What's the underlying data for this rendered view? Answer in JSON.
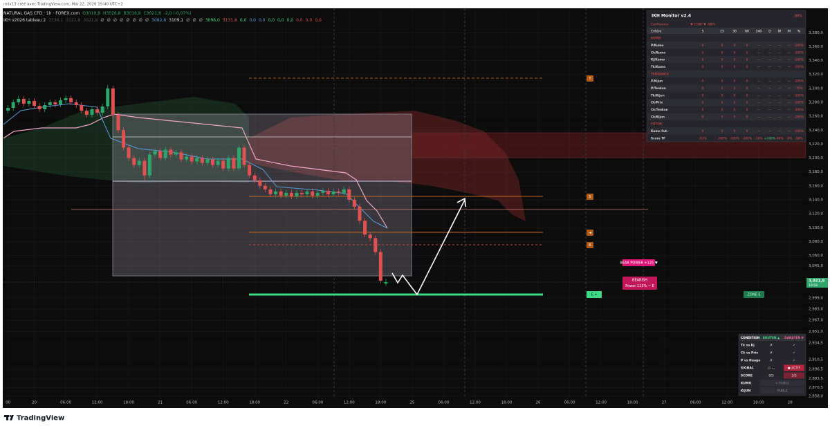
{
  "header": {
    "credit": "mlix13 créé avec TradingView.com, Mai 22, 2026 19:40 UTC+2",
    "symbol": "NATURAL GAS CFD · 1h · FOREX.com",
    "ohlc": [
      "O3019,8",
      "H3026,8",
      "B3016,8",
      "C3021,8",
      "-2,0 (-0,07%)"
    ],
    "indicator": "IKH v2026 tableau 2",
    "indicator_values": [
      "3136,1",
      "3121,8",
      "3021,8",
      "∅",
      "∅",
      "∅",
      "∅",
      "∅",
      "∅",
      "∅",
      "∅",
      "3082,8",
      "3109,1",
      "∅",
      "∅",
      "∅",
      "3096,0",
      "3131,8",
      "0,0",
      "0,0",
      "0,0",
      "0,0",
      "0,0",
      "0,0",
      "0,0",
      "0,0",
      "0,0"
    ],
    "indicator_colors": [
      "#555",
      "#555",
      "#555",
      "#ddd",
      "#ddd",
      "#ddd",
      "#ddd",
      "#ddd",
      "#ddd",
      "#ddd",
      "#ddd",
      "#5b9bd5",
      "#ddd",
      "#ddd",
      "#ddd",
      "#ddd",
      "#3ddc84",
      "#e05252",
      "#3ddc84",
      "#5b9bd5",
      "#5b9bd5",
      "#3ddc84",
      "#3ddc84",
      "#3ddc84",
      "#e05252",
      "#e05252",
      "#e05252"
    ]
  },
  "chart_data": {
    "type": "candlestick",
    "up_color": "#2ea66b",
    "down_color": "#e05252",
    "grid": true,
    "x": [
      0,
      1,
      2,
      3,
      4,
      5,
      6,
      7,
      8,
      9,
      10,
      11,
      12,
      13,
      14,
      15,
      16,
      17,
      18,
      19,
      20,
      21,
      22,
      23,
      24,
      25,
      26,
      27,
      28,
      29,
      30,
      31,
      32,
      33,
      34,
      35,
      36,
      37,
      38,
      39,
      40,
      41,
      42,
      43,
      44,
      45,
      46,
      47,
      48,
      49,
      50,
      51,
      52,
      53,
      54,
      55,
      56,
      57,
      58,
      59,
      60,
      61,
      62,
      63,
      64,
      65,
      66,
      67,
      68,
      69,
      70,
      71,
      72
    ],
    "open": [
      3268,
      3272,
      3280,
      3285,
      3278,
      3282,
      3275,
      3270,
      3276,
      3280,
      3277,
      3283,
      3286,
      3280,
      3276,
      3268,
      3262,
      3270,
      3265,
      3274,
      3300,
      3262,
      3240,
      3215,
      3200,
      3190,
      3196,
      3175,
      3205,
      3210,
      3200,
      3212,
      3205,
      3208,
      3198,
      3202,
      3195,
      3200,
      3193,
      3198,
      3190,
      3196,
      3185,
      3200,
      3185,
      3215,
      3190,
      3175,
      3168,
      3160,
      3155,
      3148,
      3152,
      3146,
      3150,
      3145,
      3150,
      3148,
      3152,
      3146,
      3150,
      3153,
      3148,
      3152,
      3150,
      3155,
      3140,
      3130,
      3110,
      3090,
      3085,
      3065,
      3019.8
    ],
    "high": [
      3276,
      3284,
      3289,
      3289,
      3286,
      3286,
      3279,
      3280,
      3284,
      3284,
      3287,
      3290,
      3290,
      3284,
      3280,
      3272,
      3274,
      3274,
      3278,
      3305,
      3304,
      3266,
      3244,
      3219,
      3204,
      3200,
      3200,
      3209,
      3214,
      3214,
      3216,
      3216,
      3212,
      3212,
      3206,
      3206,
      3204,
      3204,
      3202,
      3202,
      3200,
      3200,
      3204,
      3204,
      3219,
      3219,
      3194,
      3179,
      3172,
      3164,
      3159,
      3156,
      3156,
      3154,
      3154,
      3154,
      3154,
      3156,
      3156,
      3154,
      3157,
      3157,
      3156,
      3156,
      3159,
      3159,
      3144,
      3134,
      3114,
      3094,
      3089,
      3069,
      3026.8
    ],
    "low": [
      3264,
      3268,
      3276,
      3274,
      3274,
      3271,
      3266,
      3266,
      3272,
      3273,
      3273,
      3279,
      3276,
      3272,
      3264,
      3258,
      3258,
      3261,
      3261,
      3270,
      3258,
      3236,
      3211,
      3196,
      3186,
      3186,
      3168,
      3171,
      3201,
      3196,
      3196,
      3201,
      3201,
      3194,
      3194,
      3191,
      3191,
      3189,
      3189,
      3186,
      3186,
      3181,
      3181,
      3181,
      3181,
      3186,
      3171,
      3164,
      3156,
      3151,
      3144,
      3144,
      3142,
      3142,
      3141,
      3141,
      3144,
      3144,
      3142,
      3142,
      3146,
      3144,
      3144,
      3146,
      3146,
      3136,
      3126,
      3106,
      3086,
      3081,
      3061,
      3020,
      3016.8
    ],
    "close": [
      3272,
      3280,
      3285,
      3278,
      3282,
      3275,
      3270,
      3276,
      3280,
      3277,
      3283,
      3286,
      3280,
      3276,
      3268,
      3262,
      3270,
      3265,
      3274,
      3300,
      3262,
      3240,
      3215,
      3200,
      3190,
      3196,
      3175,
      3205,
      3210,
      3200,
      3212,
      3205,
      3208,
      3198,
      3202,
      3195,
      3200,
      3193,
      3198,
      3190,
      3196,
      3185,
      3200,
      3185,
      3215,
      3190,
      3175,
      3168,
      3160,
      3155,
      3148,
      3152,
      3146,
      3150,
      3145,
      3150,
      3148,
      3152,
      3146,
      3150,
      3153,
      3148,
      3152,
      3150,
      3155,
      3140,
      3130,
      3110,
      3090,
      3085,
      3065,
      3023.8,
      3021.8
    ],
    "xlim": [
      -1,
      152
    ],
    "ylim": [
      2856,
      3415
    ],
    "xticks": [
      {
        "value": 0,
        "label": "00"
      },
      {
        "value": 5,
        "label": "20"
      },
      {
        "value": 11,
        "label": "06:00"
      },
      {
        "value": 17,
        "label": "12:00"
      },
      {
        "value": 23,
        "label": "18:00"
      },
      {
        "value": 29,
        "label": "21"
      },
      {
        "value": 35,
        "label": "06:00"
      },
      {
        "value": 41,
        "label": "12:00"
      },
      {
        "value": 47,
        "label": "18:00"
      },
      {
        "value": 53,
        "label": "22"
      },
      {
        "value": 59,
        "label": "06:00"
      },
      {
        "value": 65,
        "label": "12:00"
      },
      {
        "value": 71,
        "label": "18:00"
      },
      {
        "value": 77,
        "label": "25"
      },
      {
        "value": 83,
        "label": "06:00"
      },
      {
        "value": 89,
        "label": "12:00"
      },
      {
        "value": 95,
        "label": "18:00"
      },
      {
        "value": 101,
        "label": "26"
      },
      {
        "value": 107,
        "label": "06:00"
      },
      {
        "value": 113,
        "label": "12:00"
      },
      {
        "value": 119,
        "label": "18:00"
      },
      {
        "value": 125,
        "label": "27"
      },
      {
        "value": 131,
        "label": "06:00"
      },
      {
        "value": 137,
        "label": "12:00"
      },
      {
        "value": 143,
        "label": "18:00"
      },
      {
        "value": 149,
        "label": "28"
      }
    ],
    "yticks": [
      {
        "value": 3380,
        "label": "3,380,0"
      },
      {
        "value": 3360,
        "label": "3,360,0"
      },
      {
        "value": 3340,
        "label": "3,340,0"
      },
      {
        "value": 3320,
        "label": "3,320,0"
      },
      {
        "value": 3300,
        "label": "3,300,0"
      },
      {
        "value": 3280,
        "label": "3,280,0"
      },
      {
        "value": 3260,
        "label": "3,260,0"
      },
      {
        "value": 3240,
        "label": "3,240,0"
      },
      {
        "value": 3220,
        "label": "3,220,0"
      },
      {
        "value": 3200,
        "label": "3,200,0"
      },
      {
        "value": 3180,
        "label": "3,180,0"
      },
      {
        "value": 3160,
        "label": "3,160,0"
      },
      {
        "value": 3140,
        "label": "3,140,0"
      },
      {
        "value": 3120,
        "label": "3,120,0"
      },
      {
        "value": 3100,
        "label": "3,100,0"
      },
      {
        "value": 3080,
        "label": "3,080,0"
      },
      {
        "value": 3060,
        "label": "3,060,0"
      },
      {
        "value": 3045,
        "label": "3,045,0"
      },
      {
        "value": 2999,
        "label": "2,999,0"
      },
      {
        "value": 2983,
        "label": "2,983,0"
      },
      {
        "value": 2967,
        "label": "2,967,0"
      },
      {
        "value": 2951,
        "label": "2,951,0"
      },
      {
        "value": 2934.5,
        "label": "2,934,5"
      },
      {
        "value": 2910.5,
        "label": "2,910,5"
      },
      {
        "value": 2896.5,
        "label": "2,896,5"
      },
      {
        "value": 2883.5,
        "label": "2,883,5"
      },
      {
        "value": 2870.5,
        "label": "2,870,5"
      },
      {
        "value": 2858,
        "label": "2,858,0"
      }
    ],
    "current_price": {
      "value": 3021.8,
      "label": "3,021,8",
      "countdown": "19:58"
    },
    "annotations": [
      "Y",
      "S",
      "◄",
      "R",
      "BEAR POWER +125 ▼",
      "BEARISH",
      "Power 113% ~ E",
      "E ✦",
      "ZONE E"
    ]
  },
  "monitor": {
    "title": "IKH Monitor v2.4",
    "score": "-98%",
    "confluence": [
      "Confluence",
      "▼ CONF ▼ -98%"
    ],
    "columns": [
      "Critère",
      "5",
      "15",
      "30",
      "60",
      "240",
      "D",
      "W",
      "M",
      "%"
    ],
    "rows": [
      [
        "KUMO"
      ],
      [
        "P/Kumo",
        "0",
        "0",
        "0",
        "0",
        "—",
        "—",
        "—",
        "—",
        "-100%"
      ],
      [
        "Ck/Kumo",
        "0",
        "0",
        "0",
        "0",
        "—",
        "—",
        "—",
        "—",
        "-100%"
      ],
      [
        "Kj/Kumo",
        "0",
        "0",
        "0",
        "0",
        "—",
        "—",
        "—",
        "—",
        "-100%"
      ],
      [
        "Tk/Kumo",
        "0",
        "0",
        "0",
        "0",
        "—",
        "—",
        "—",
        "—",
        "-100%"
      ],
      [
        "TENDANCE"
      ],
      [
        "P/Kijun",
        "0",
        "0",
        "0",
        "0",
        "—",
        "—",
        "—",
        "—",
        "-100%"
      ],
      [
        "P/Tenkan",
        "0",
        "0",
        "0",
        "0",
        "—",
        "—",
        "—",
        "—",
        "-75%"
      ],
      [
        "Tk/Kijun",
        "0",
        "0",
        "0",
        "0",
        "—",
        "—",
        "—",
        "—",
        "-100%"
      ],
      [
        "Ck/Prix",
        "0",
        "0",
        "0",
        "0",
        "—",
        "—",
        "—",
        "—",
        "-100%"
      ],
      [
        "Ck/Tenkan",
        "0",
        "0",
        "0",
        "0",
        "—",
        "—",
        "—",
        "—",
        "-100%"
      ],
      [
        "Ck/Kijun",
        "0",
        "0",
        "0",
        "0",
        "—",
        "—",
        "—",
        "—",
        "-100%"
      ],
      [
        "FUTUR"
      ],
      [
        "Kumo Fut.",
        "0",
        "0",
        "0",
        "0",
        "—",
        "—",
        "—",
        "—",
        "-100%"
      ],
      [
        "Score TF",
        "-91%",
        "-100%",
        "-100%",
        "-100%",
        "-10%",
        "+100%",
        "-84%",
        "-9%",
        "-98%"
      ]
    ]
  },
  "conditions": {
    "columns": [
      "CONDITION",
      "KOUTEN ▲",
      "DANJITEN ▼"
    ],
    "rows": [
      [
        "Tk vs Kj",
        "✗",
        "✓"
      ],
      [
        "Ck vs Prix",
        "✗",
        "✓"
      ],
      [
        "P vs Nuage",
        "✗",
        "✓"
      ],
      [
        "SIGNAL",
        "○ —",
        "● ACTIF"
      ],
      [
        "SCORE",
        "0/3",
        "3/3"
      ],
      [
        "KUMO",
        "≈ FAIBLE"
      ],
      [
        "KIJUN",
        "FAIBLE"
      ]
    ]
  },
  "footer": "TradingView"
}
